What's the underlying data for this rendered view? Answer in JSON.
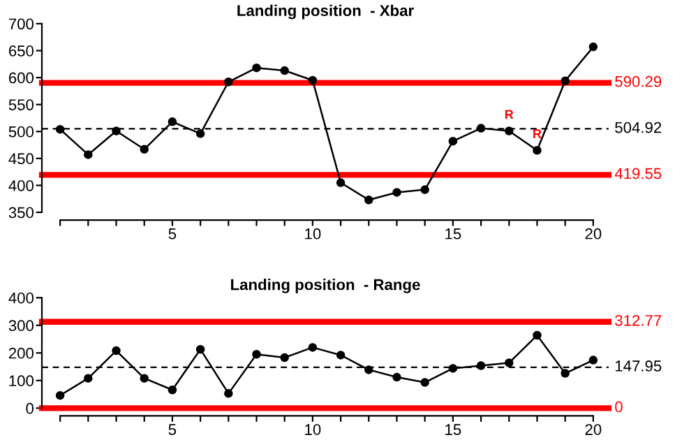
{
  "chart_data": [
    {
      "type": "line",
      "title": "Landing position  - Xbar",
      "x": [
        1,
        2,
        3,
        4,
        5,
        6,
        7,
        8,
        9,
        10,
        11,
        12,
        13,
        14,
        15,
        16,
        17,
        18,
        19,
        20
      ],
      "series": [
        {
          "color": "#000000",
          "values": [
            504,
            457,
            501,
            467,
            518,
            496,
            592,
            618,
            613,
            595,
            405,
            373,
            387,
            392,
            482,
            506,
            501,
            465,
            594,
            657
          ]
        }
      ],
      "marker": "circle",
      "line_style": "solid",
      "grid": false,
      "legend": false,
      "xlim": [
        0.35,
        20.55
      ],
      "xticks": [
        {
          "value": 1,
          "label": null
        },
        {
          "value": 2,
          "label": null
        },
        {
          "value": 3,
          "label": null
        },
        {
          "value": 4,
          "label": null
        },
        5,
        {
          "value": 6,
          "label": null
        },
        {
          "value": 7,
          "label": null
        },
        {
          "value": 8,
          "label": null
        },
        {
          "value": 9,
          "label": null
        },
        10,
        {
          "value": 11,
          "label": null
        },
        {
          "value": 12,
          "label": null
        },
        {
          "value": 13,
          "label": null
        },
        {
          "value": 14,
          "label": null
        },
        15,
        {
          "value": 16,
          "label": null
        },
        {
          "value": 17,
          "label": null
        },
        {
          "value": 18,
          "label": null
        },
        {
          "value": 19,
          "label": null
        },
        20
      ],
      "ylim": [
        350,
        700
      ],
      "yticks": [
        350,
        400,
        450,
        500,
        550,
        600,
        650,
        700
      ],
      "ref_lines": [
        {
          "axis": "y",
          "value": 590.29,
          "label": "590.29",
          "color": "#ff0000",
          "line_style": "solid"
        },
        {
          "axis": "y",
          "value": 504.92,
          "label": "504.92",
          "color": "#000000",
          "line_style": "dashed"
        },
        {
          "axis": "y",
          "value": 419.55,
          "label": "419.55",
          "color": "#ff0000",
          "line_style": "solid"
        }
      ],
      "annotations": [
        {
          "text": "R",
          "x": 17,
          "y": 501
        },
        {
          "text": "R",
          "x": 18,
          "y": 465
        }
      ]
    },
    {
      "type": "line",
      "title": "Landing position  - Range",
      "x": [
        1,
        2,
        3,
        4,
        5,
        6,
        7,
        8,
        9,
        10,
        11,
        12,
        13,
        14,
        15,
        16,
        17,
        18,
        19,
        20
      ],
      "series": [
        {
          "color": "#000000",
          "values": [
            46,
            108,
            208,
            108,
            66,
            213,
            53,
            195,
            183,
            220,
            192,
            139,
            112,
            93,
            144,
            154,
            164,
            264,
            126,
            174
          ]
        }
      ],
      "marker": "circle",
      "line_style": "solid",
      "grid": false,
      "legend": false,
      "xlim": [
        0.35,
        20.55
      ],
      "xticks": [
        {
          "value": 1,
          "label": null
        },
        {
          "value": 2,
          "label": null
        },
        {
          "value": 3,
          "label": null
        },
        {
          "value": 4,
          "label": null
        },
        5,
        {
          "value": 6,
          "label": null
        },
        {
          "value": 7,
          "label": null
        },
        {
          "value": 8,
          "label": null
        },
        {
          "value": 9,
          "label": null
        },
        10,
        {
          "value": 11,
          "label": null
        },
        {
          "value": 12,
          "label": null
        },
        {
          "value": 13,
          "label": null
        },
        {
          "value": 14,
          "label": null
        },
        15,
        {
          "value": 16,
          "label": null
        },
        {
          "value": 17,
          "label": null
        },
        {
          "value": 18,
          "label": null
        },
        {
          "value": 19,
          "label": null
        },
        20
      ],
      "ylim": [
        0,
        400
      ],
      "yticks": [
        0,
        100,
        200,
        300,
        400
      ],
      "ref_lines": [
        {
          "axis": "y",
          "value": 312.77,
          "label": "312.77",
          "color": "#ff0000",
          "line_style": "solid"
        },
        {
          "axis": "y",
          "value": 147.95,
          "label": "147.95",
          "color": "#000000",
          "line_style": "dashed"
        },
        {
          "axis": "y",
          "value": 0,
          "label": "0",
          "color": "#ff0000",
          "line_style": "solid"
        }
      ]
    }
  ]
}
